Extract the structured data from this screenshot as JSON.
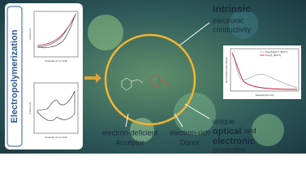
{
  "left_panel": {
    "title": "Electropolymerization",
    "plot_top": {
      "x_label": "Potential (V) vs SCE",
      "y_label": "Current (A)"
    },
    "plot_bottom": {
      "x_label": "Potential (V) vs SCE",
      "y_label": "Current (A)"
    }
  },
  "center": {
    "acceptor": {
      "line1": "electron-deficient",
      "line2": "Acceptor"
    },
    "donor": {
      "line1": "electron-rich",
      "line2": "Donor"
    }
  },
  "top_right": {
    "line1": "intrinsic",
    "line2": "electronic",
    "line3": "conductivity"
  },
  "right_plot": {
    "x_label": "Wavelength (nm)",
    "y_label": "Normalized Absorbance",
    "legend": [
      "Poly(TEDOT_BDTT)",
      "Poly(T_BDTT)"
    ]
  },
  "bottom_right": {
    "line1": "unique",
    "word1": "optical",
    "word2": "and",
    "word3": "electronic",
    "line3": "properties"
  }
}
